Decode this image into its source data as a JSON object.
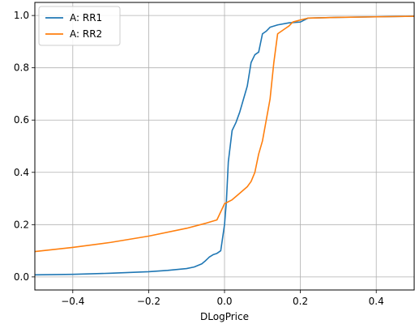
{
  "chart_data": {
    "type": "line",
    "title": "",
    "xlabel": "DLogPrice",
    "ylabel": "",
    "xlim": [
      -0.5,
      0.5
    ],
    "ylim": [
      -0.05,
      1.05
    ],
    "grid": true,
    "legend_position": "top-left",
    "x_ticks": [
      -0.4,
      -0.2,
      0.0,
      0.2,
      0.4
    ],
    "x_tick_labels": [
      "−0.4",
      "−0.2",
      "0.0",
      "0.2",
      "0.4"
    ],
    "y_ticks": [
      0.0,
      0.2,
      0.4,
      0.6,
      0.8,
      1.0
    ],
    "y_tick_labels": [
      "0.0",
      "0.2",
      "0.4",
      "0.6",
      "0.8",
      "1.0"
    ],
    "series": [
      {
        "name": "A: RR1",
        "color": "#1f77b4",
        "x": [
          -0.5,
          -0.4,
          -0.3,
          -0.2,
          -0.15,
          -0.1,
          -0.08,
          -0.06,
          -0.05,
          -0.04,
          -0.03,
          -0.02,
          -0.01,
          0.0,
          0.005,
          0.01,
          0.02,
          0.03,
          0.04,
          0.05,
          0.06,
          0.07,
          0.08,
          0.09,
          0.1,
          0.11,
          0.12,
          0.14,
          0.17,
          0.2,
          0.22,
          0.3,
          0.4,
          0.5
        ],
        "y": [
          0.008,
          0.01,
          0.014,
          0.02,
          0.025,
          0.032,
          0.038,
          0.05,
          0.062,
          0.076,
          0.085,
          0.09,
          0.1,
          0.2,
          0.29,
          0.44,
          0.56,
          0.59,
          0.63,
          0.68,
          0.73,
          0.82,
          0.85,
          0.86,
          0.93,
          0.94,
          0.955,
          0.964,
          0.972,
          0.975,
          0.99,
          0.993,
          0.995,
          0.997
        ]
      },
      {
        "name": "A: RR2",
        "color": "#ff7f0e",
        "x": [
          -0.5,
          -0.4,
          -0.3,
          -0.2,
          -0.1,
          -0.05,
          -0.02,
          0.0,
          0.02,
          0.04,
          0.06,
          0.07,
          0.08,
          0.09,
          0.1,
          0.11,
          0.12,
          0.13,
          0.14,
          0.15,
          0.16,
          0.17,
          0.18,
          0.2,
          0.22,
          0.3,
          0.4,
          0.5
        ],
        "y": [
          0.097,
          0.113,
          0.132,
          0.156,
          0.186,
          0.205,
          0.218,
          0.28,
          0.295,
          0.32,
          0.345,
          0.365,
          0.4,
          0.47,
          0.52,
          0.6,
          0.68,
          0.82,
          0.93,
          0.94,
          0.95,
          0.96,
          0.975,
          0.983,
          0.99,
          0.993,
          0.995,
          0.997
        ]
      }
    ]
  }
}
